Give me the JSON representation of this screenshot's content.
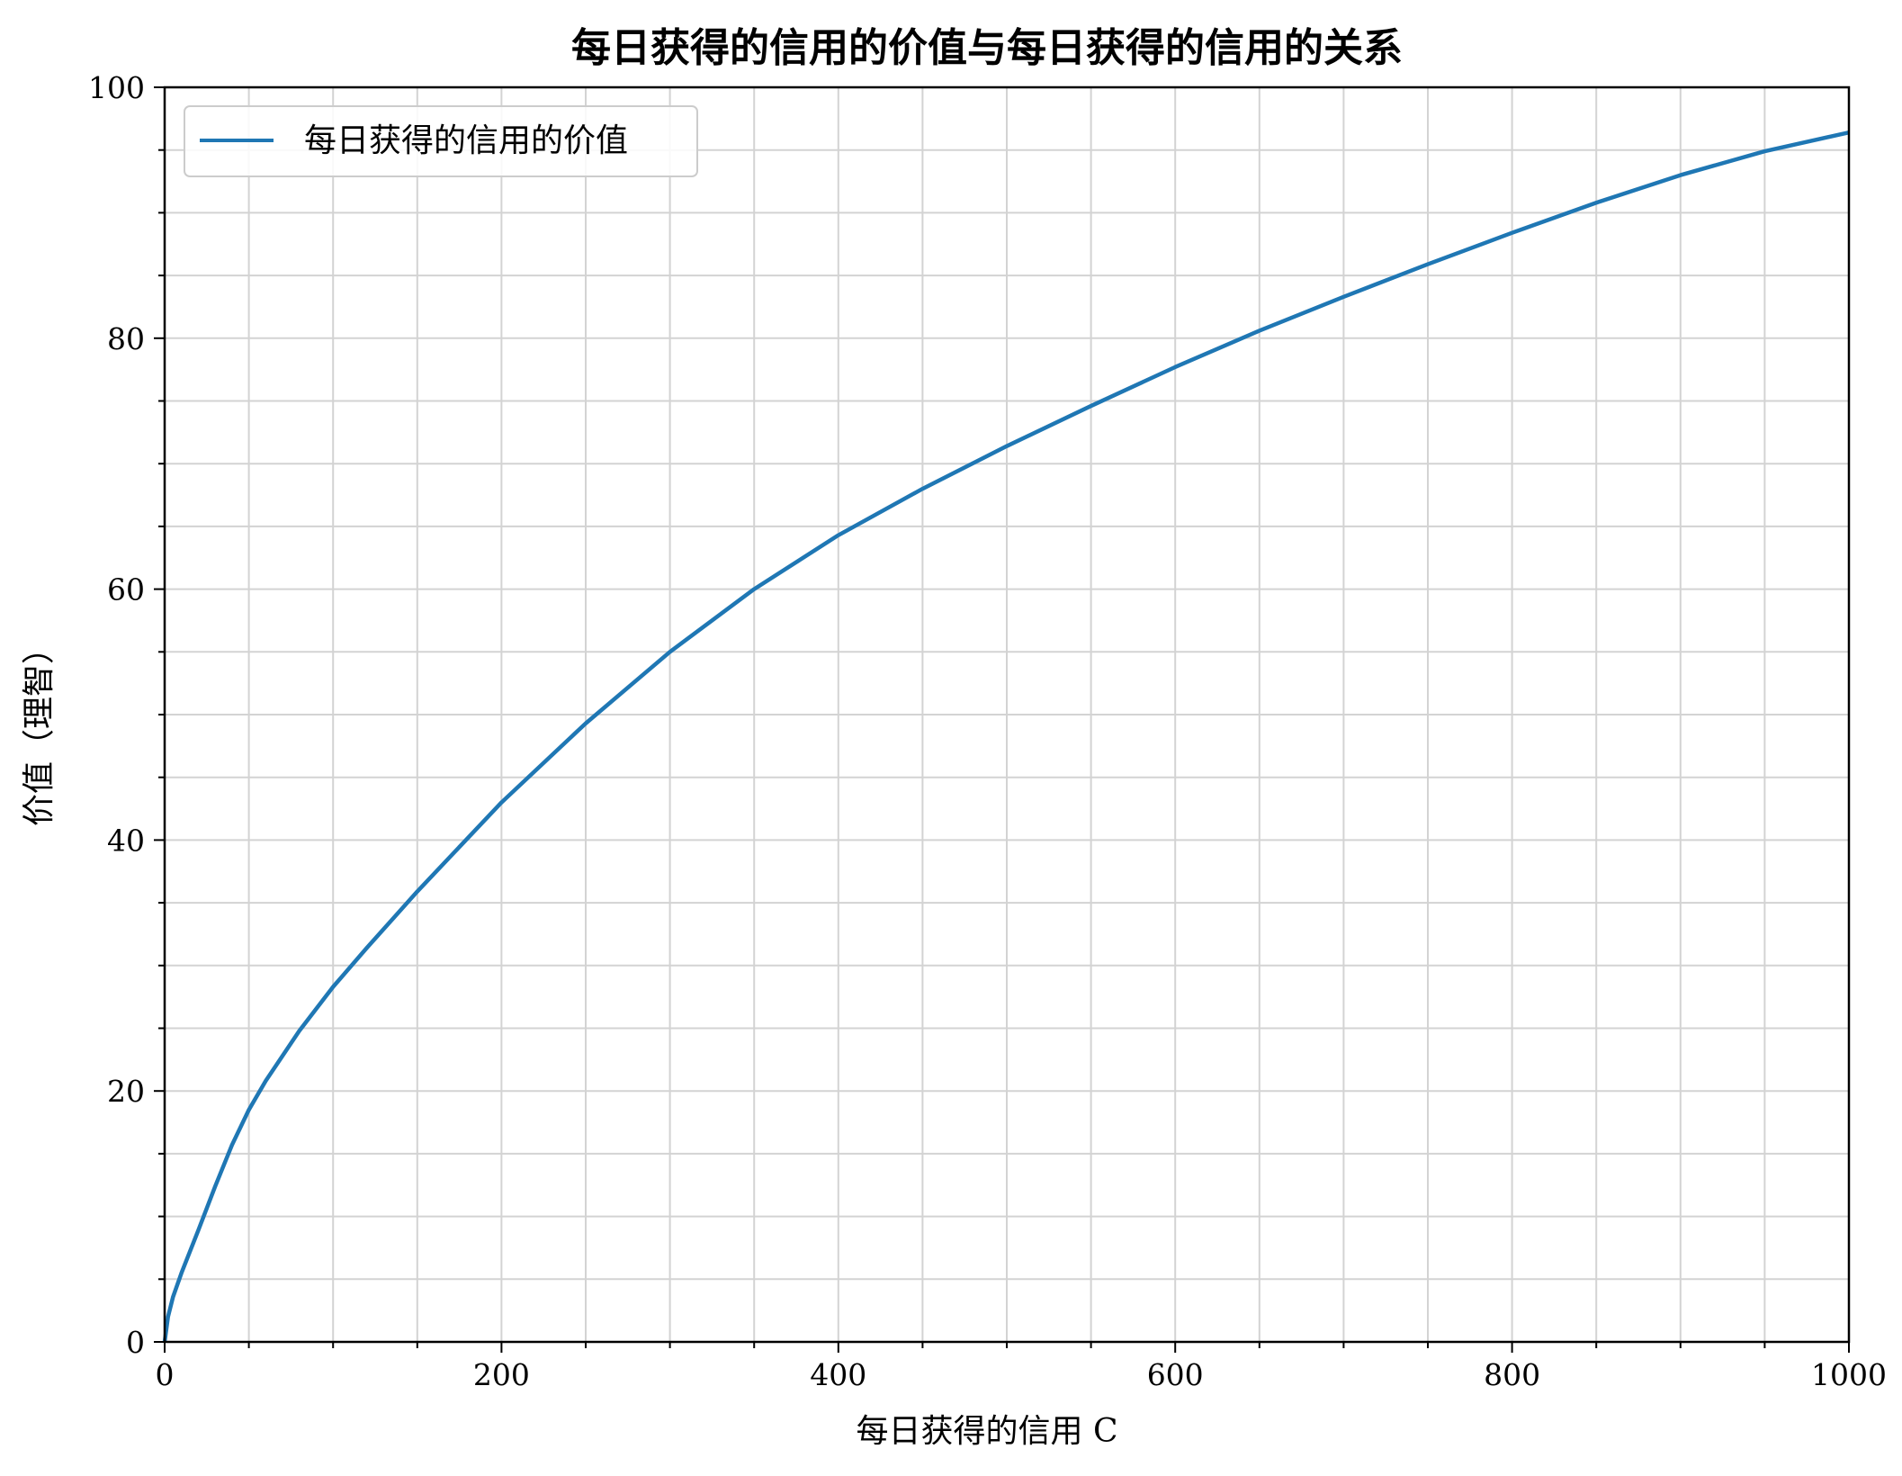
{
  "chart_data": {
    "type": "line",
    "title": "每日获得的信用的价值与每日获得的信用的关系",
    "xlabel": "每日获得的信用 C",
    "ylabel": "价值（理智）",
    "xlim": [
      0,
      1000
    ],
    "ylim": [
      0,
      100
    ],
    "x_ticks": [
      0,
      200,
      400,
      600,
      800,
      1000
    ],
    "x_tick_labels": [
      "0",
      "200",
      "400",
      "600",
      "800",
      "1000"
    ],
    "y_ticks": [
      0,
      20,
      40,
      60,
      80,
      100
    ],
    "y_tick_labels": [
      "0",
      "20",
      "40",
      "60",
      "80",
      "100"
    ],
    "grid": true,
    "minor_grid": true,
    "legend_position": "top-left",
    "series": [
      {
        "name": "每日获得的信用的价值",
        "color": "#1f77b4",
        "x": [
          0,
          2,
          5,
          10,
          20,
          30,
          40,
          50,
          60,
          80,
          100,
          120,
          150,
          200,
          250,
          300,
          350,
          400,
          450,
          500,
          550,
          600,
          650,
          700,
          750,
          800,
          850,
          900,
          950,
          1000
        ],
        "y": [
          0,
          2.0,
          3.6,
          5.5,
          8.9,
          12.4,
          15.7,
          18.5,
          20.8,
          24.8,
          28.3,
          31.4,
          35.9,
          43.0,
          49.3,
          55.0,
          60.0,
          64.3,
          68.0,
          71.4,
          74.6,
          77.7,
          80.6,
          83.3,
          85.9,
          88.4,
          90.8,
          93.0,
          94.9,
          96.4
        ]
      }
    ]
  }
}
